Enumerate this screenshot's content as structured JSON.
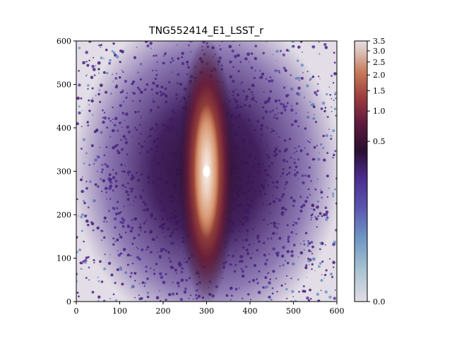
{
  "chart_data": {
    "type": "heatmap",
    "title": "TNG552414_E1_LSST_r",
    "xlabel": "",
    "ylabel": "",
    "xlim": [
      0,
      600
    ],
    "ylim": [
      0,
      600
    ],
    "x_ticks": [
      0,
      100,
      200,
      300,
      400,
      500,
      600
    ],
    "y_ticks": [
      0,
      100,
      200,
      300,
      400,
      500,
      600
    ],
    "image_center": [
      300,
      300
    ],
    "colormap": "twilight_shifted",
    "colors": {
      "background": "#e2dde6",
      "outskirt_blue": "#6f98c4",
      "disk_purple": "#4a1c7a",
      "dark_core": "#2b0f30",
      "bulge_orange": "#c46a3c",
      "center_white": "#f3ece8"
    },
    "colorbar": {
      "scale": "nonlinear",
      "ticks": [
        {
          "value": 0.0,
          "label": "0.0"
        },
        {
          "value": 0.5,
          "label": "0.5"
        },
        {
          "value": 1.0,
          "label": "1.0"
        },
        {
          "value": 1.5,
          "label": "1.5"
        },
        {
          "value": 2.0,
          "label": "2.0"
        },
        {
          "value": 2.5,
          "label": "2.5"
        },
        {
          "value": 3.0,
          "label": "3.0"
        },
        {
          "value": 3.5,
          "label": "3.5"
        }
      ]
    }
  }
}
